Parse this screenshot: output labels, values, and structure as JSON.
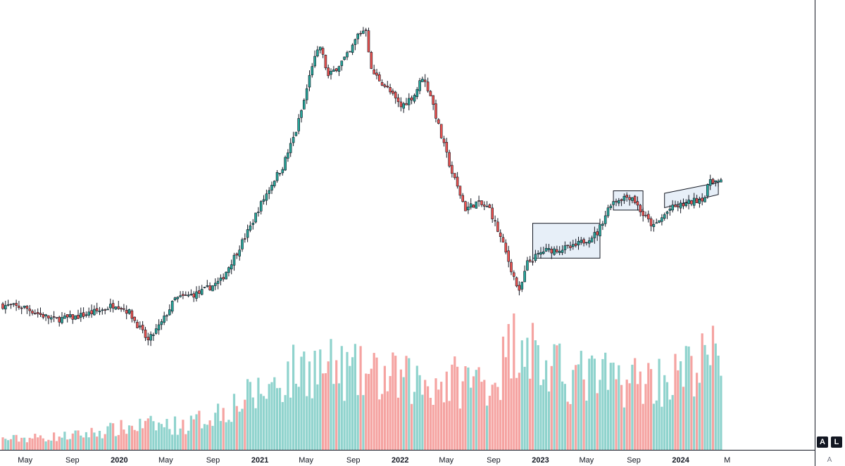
{
  "chart_data": {
    "type": "candlestick",
    "title": "",
    "xlabel": "",
    "ylabel": "",
    "x_ticks": [
      {
        "label": "May",
        "date": "2019-05"
      },
      {
        "label": "Sep",
        "date": "2019-09"
      },
      {
        "label": "2020",
        "date": "2020-01",
        "bold": true
      },
      {
        "label": "May",
        "date": "2020-05"
      },
      {
        "label": "Sep",
        "date": "2020-09"
      },
      {
        "label": "2021",
        "date": "2021-01",
        "bold": true
      },
      {
        "label": "May",
        "date": "2021-05"
      },
      {
        "label": "Sep",
        "date": "2021-09"
      },
      {
        "label": "2022",
        "date": "2022-01",
        "bold": true
      },
      {
        "label": "May",
        "date": "2022-05"
      },
      {
        "label": "Sep",
        "date": "2022-09"
      },
      {
        "label": "2023",
        "date": "2023-01",
        "bold": true
      },
      {
        "label": "May",
        "date": "2023-05"
      },
      {
        "label": "Sep",
        "date": "2023-09"
      },
      {
        "label": "2024",
        "date": "2024-01",
        "bold": true
      },
      {
        "label": "M",
        "date": "2024-05"
      }
    ],
    "price_scale_visible": false,
    "colors": {
      "up": "#26a69a",
      "down": "#ef5350",
      "up_volume": "#8fd3cd",
      "down_volume": "#f5a3a1",
      "box_fill": "#e3ecf7",
      "box_border": "#131722"
    },
    "anchors": [
      [
        "2019-03-04",
        0.0
      ],
      [
        "2019-05-06",
        -0.2
      ],
      [
        "2019-06-17",
        -0.8
      ],
      [
        "2019-07-22",
        -1.2
      ],
      [
        "2019-09-16",
        -1.0
      ],
      [
        "2019-11-25",
        -0.4
      ],
      [
        "2019-12-30",
        0.1
      ],
      [
        "2020-02-03",
        -0.6
      ],
      [
        "2020-03-23",
        -3.0
      ],
      [
        "2020-04-27",
        -1.5
      ],
      [
        "2020-06-01",
        0.5
      ],
      [
        "2020-08-03",
        1.0
      ],
      [
        "2020-09-28",
        2.0
      ],
      [
        "2020-11-02",
        4.0
      ],
      [
        "2020-12-14",
        6.5
      ],
      [
        "2021-01-04",
        8.0
      ],
      [
        "2021-02-15",
        10.5
      ],
      [
        "2021-03-08",
        11.5
      ],
      [
        "2021-04-12",
        14.5
      ],
      [
        "2021-05-03",
        17.0
      ],
      [
        "2021-05-24",
        20.0
      ],
      [
        "2021-06-14",
        21.5
      ],
      [
        "2021-07-05",
        19.0
      ],
      [
        "2021-08-02",
        20.0
      ],
      [
        "2021-08-30",
        21.0
      ],
      [
        "2021-09-20",
        22.5
      ],
      [
        "2021-10-11",
        23.0
      ],
      [
        "2021-10-25",
        19.5
      ],
      [
        "2021-12-06",
        18.0
      ],
      [
        "2022-01-10",
        16.5
      ],
      [
        "2022-02-14",
        17.5
      ],
      [
        "2022-03-07",
        19.0
      ],
      [
        "2022-03-28",
        17.5
      ],
      [
        "2022-04-25",
        14.0
      ],
      [
        "2022-05-23",
        11.0
      ],
      [
        "2022-06-27",
        8.0
      ],
      [
        "2022-07-25",
        8.5
      ],
      [
        "2022-08-29",
        8.0
      ],
      [
        "2022-10-03",
        5.0
      ],
      [
        "2022-11-14",
        1.0
      ],
      [
        "2022-12-05",
        3.5
      ],
      [
        "2023-01-16",
        4.5
      ],
      [
        "2023-04-03",
        4.8
      ],
      [
        "2023-06-05",
        6.0
      ],
      [
        "2023-07-10",
        8.5
      ],
      [
        "2023-08-14",
        9.0
      ],
      [
        "2023-09-04",
        9.0
      ],
      [
        "2023-10-02",
        7.5
      ],
      [
        "2023-10-30",
        6.5
      ],
      [
        "2023-12-11",
        8.0
      ],
      [
        "2024-01-29",
        8.5
      ],
      [
        "2024-03-11",
        9.0
      ],
      [
        "2024-03-25",
        10.5
      ],
      [
        "2024-04-15",
        10.2
      ]
    ],
    "volume_profile": [
      [
        "2019-03-04",
        6
      ],
      [
        "2019-09-02",
        8
      ],
      [
        "2020-03-02",
        14
      ],
      [
        "2020-06-29",
        14
      ],
      [
        "2020-12-28",
        32
      ],
      [
        "2021-05-03",
        48
      ],
      [
        "2021-10-04",
        42
      ],
      [
        "2022-03-07",
        38
      ],
      [
        "2022-09-05",
        40
      ],
      [
        "2022-11-14",
        70
      ],
      [
        "2023-01-09",
        45
      ],
      [
        "2023-06-05",
        40
      ],
      [
        "2023-12-04",
        40
      ],
      [
        "2024-04-15",
        55
      ]
    ],
    "patterns": [
      {
        "type": "rectangle",
        "from": "2022-12-12",
        "to": "2023-06-05",
        "top": 6.8,
        "bottom": 3.9
      },
      {
        "type": "rectangle",
        "from": "2023-07-10",
        "to": "2023-09-25",
        "top": 9.5,
        "bottom": 7.9
      },
      {
        "type": "channel",
        "from": "2023-11-20",
        "to": "2024-04-08",
        "upper": [
          9.3,
          10.2
        ],
        "lower": [
          8.1,
          9.2
        ]
      }
    ]
  },
  "toolbar": {
    "auto_label": "A",
    "log_label": "L",
    "scale_label": "A"
  }
}
